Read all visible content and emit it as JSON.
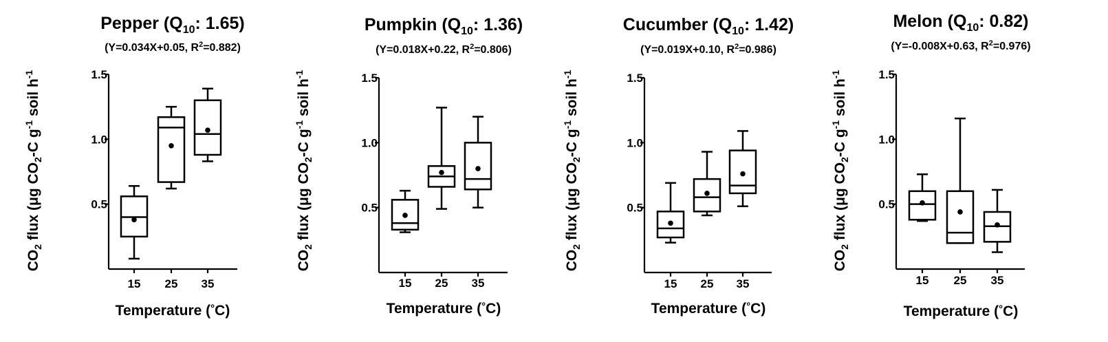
{
  "chart_data": [
    {
      "type": "box",
      "title": {
        "crop": "Pepper",
        "q10_label": "Q",
        "q10_sub": "10",
        "q10_value": ": 1.65)"
      },
      "equation": {
        "pre": "(Y=0.034X+0.05, R",
        "sup": "2",
        "post": "=0.882)"
      },
      "categories": [
        "15",
        "25",
        "35"
      ],
      "ylim": [
        0,
        1.5
      ],
      "yticks": [
        "0.5",
        "1.0",
        "1.5"
      ],
      "boxes": [
        {
          "min": 0.08,
          "q1": 0.25,
          "median": 0.4,
          "q3": 0.56,
          "max": 0.64,
          "mean": 0.38
        },
        {
          "min": 0.62,
          "q1": 0.67,
          "median": 1.09,
          "q3": 1.17,
          "max": 1.25,
          "mean": 0.95
        },
        {
          "min": 0.83,
          "q1": 0.88,
          "median": 1.04,
          "q3": 1.3,
          "max": 1.39,
          "mean": 1.07
        }
      ]
    },
    {
      "type": "box",
      "title": {
        "crop": "Pumpkin",
        "q10_label": "Q",
        "q10_sub": "10",
        "q10_value": ": 1.36)"
      },
      "equation": {
        "pre": "(Y=0.018X+0.22, R",
        "sup": "2",
        "post": "=0.806)"
      },
      "categories": [
        "15",
        "25",
        "35"
      ],
      "ylim": [
        0,
        1.5
      ],
      "yticks": [
        "0.5",
        "1.0",
        "1.5"
      ],
      "boxes": [
        {
          "min": 0.31,
          "q1": 0.33,
          "median": 0.38,
          "q3": 0.56,
          "max": 0.63,
          "mean": 0.44
        },
        {
          "min": 0.49,
          "q1": 0.66,
          "median": 0.74,
          "q3": 0.82,
          "max": 1.27,
          "mean": 0.77
        },
        {
          "min": 0.5,
          "q1": 0.64,
          "median": 0.72,
          "q3": 1.0,
          "max": 1.2,
          "mean": 0.8
        }
      ]
    },
    {
      "type": "box",
      "title": {
        "crop": "Cucumber",
        "q10_label": "Q",
        "q10_sub": "10",
        "q10_value": ": 1.42)"
      },
      "equation": {
        "pre": "(Y=0.019X+0.10, R",
        "sup": "2",
        "post": "=0.986)"
      },
      "categories": [
        "15",
        "25",
        "35"
      ],
      "ylim": [
        0,
        1.5
      ],
      "yticks": [
        "0.5",
        "1.0",
        "1.5"
      ],
      "boxes": [
        {
          "min": 0.23,
          "q1": 0.27,
          "median": 0.34,
          "q3": 0.47,
          "max": 0.69,
          "mean": 0.38
        },
        {
          "min": 0.44,
          "q1": 0.47,
          "median": 0.58,
          "q3": 0.72,
          "max": 0.93,
          "mean": 0.61
        },
        {
          "min": 0.51,
          "q1": 0.61,
          "median": 0.67,
          "q3": 0.94,
          "max": 1.09,
          "mean": 0.76
        }
      ]
    },
    {
      "type": "box",
      "title": {
        "crop": "Melon",
        "q10_label": "Q",
        "q10_sub": "10",
        "q10_value": ": 0.82)"
      },
      "equation": {
        "pre": "(Y=-0.008X+0.63, R",
        "sup": "2",
        "post": "=0.976)"
      },
      "categories": [
        "15",
        "25",
        "35"
      ],
      "ylim": [
        0,
        1.5
      ],
      "yticks": [
        "0.5",
        "1.0",
        "1.5"
      ],
      "boxes": [
        {
          "min": 0.37,
          "q1": 0.38,
          "median": 0.5,
          "q3": 0.6,
          "max": 0.73,
          "mean": 0.51
        },
        {
          "min": 0.2,
          "q1": 0.2,
          "median": 0.28,
          "q3": 0.6,
          "max": 1.16,
          "mean": 0.44
        },
        {
          "min": 0.13,
          "q1": 0.21,
          "median": 0.33,
          "q3": 0.44,
          "max": 0.61,
          "mean": 0.34
        }
      ]
    }
  ],
  "axis_labels": {
    "x": {
      "text": "Temperature (",
      "degree": "°",
      "unit": "C)"
    },
    "y": {
      "co": "CO",
      "co_sub": "2",
      "flux": " flux (",
      "mu": "μ",
      "g": "g CO",
      "g_sub": "2",
      "c": "-C g",
      "c_sup": "-1",
      "soil": " soil h",
      "h_sup": "-1"
    }
  }
}
